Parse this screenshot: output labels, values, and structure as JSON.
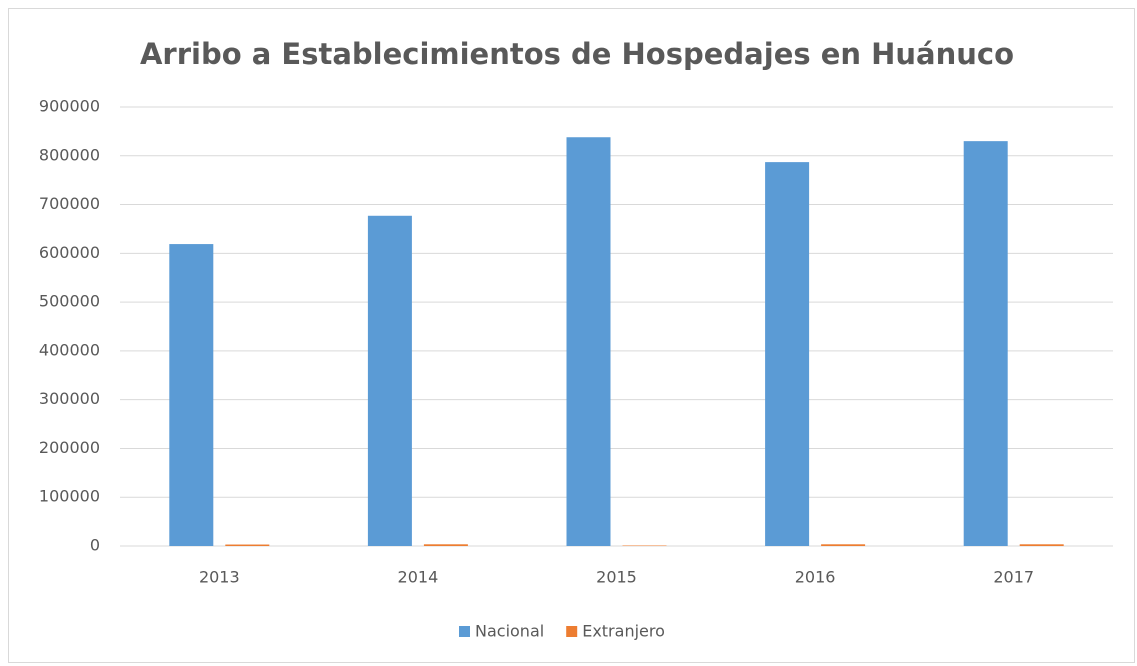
{
  "chart_data": {
    "type": "bar",
    "title": "Arribo a Establecimientos de Hospedajes en Huánuco",
    "categories": [
      "2013",
      "2014",
      "2015",
      "2016",
      "2017"
    ],
    "series": [
      {
        "name": "Nacional",
        "color": "#5b9bd5",
        "values": [
          619000,
          677000,
          838000,
          787000,
          830000
        ]
      },
      {
        "name": "Extranjero",
        "color": "#ed7d31",
        "values": [
          3000,
          3500,
          1000,
          3500,
          3500
        ]
      }
    ],
    "ylim": [
      0,
      900000
    ],
    "yticks": [
      0,
      100000,
      200000,
      300000,
      400000,
      500000,
      600000,
      700000,
      800000,
      900000
    ],
    "grid": true,
    "legend": "bottom"
  }
}
